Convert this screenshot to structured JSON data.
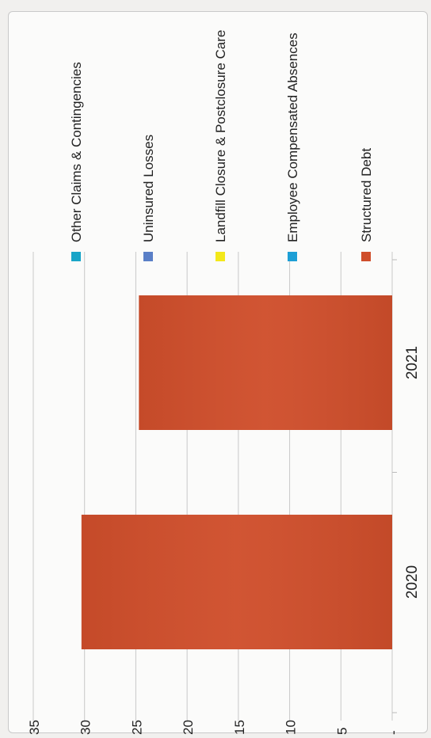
{
  "chart_data": {
    "type": "bar",
    "orientation": "rotated-90-ccw",
    "title": "",
    "xlabel": "",
    "ylabel": "",
    "categories": [
      "2020",
      "2021"
    ],
    "series": [
      {
        "name": "Structured Debt",
        "values": [
          30.3,
          24.7
        ],
        "color": "#cf4e2b"
      },
      {
        "name": "Employee Compensated Absences",
        "values": [
          0,
          0
        ],
        "color": "#1d9fd6"
      },
      {
        "name": "Landfill Closure & Postclosure Care",
        "values": [
          0,
          0
        ],
        "color": "#f3e81a"
      },
      {
        "name": "Uninsured Losses",
        "values": [
          0,
          0
        ],
        "color": "#5a7fc7"
      },
      {
        "name": "Other Claims & Contingencies",
        "values": [
          0,
          0
        ],
        "color": "#19a5c8"
      }
    ],
    "y_ticks": [
      {
        "value": 0,
        "label": "-"
      },
      {
        "value": 5,
        "label": "5"
      },
      {
        "value": 10,
        "label": "10"
      },
      {
        "value": 15,
        "label": "15"
      },
      {
        "value": 20,
        "label": "20"
      },
      {
        "value": 25,
        "label": "25"
      },
      {
        "value": 30,
        "label": "30"
      },
      {
        "value": 35,
        "label": "35"
      }
    ],
    "ylim": [
      0,
      35
    ],
    "grid": true,
    "stacked": true,
    "legend_position": "right"
  }
}
